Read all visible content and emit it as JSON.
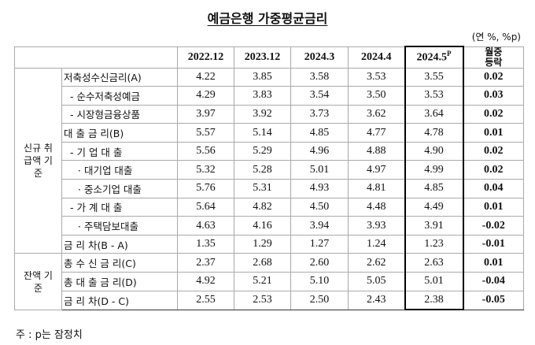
{
  "title": "예금은행 가중평균금리",
  "unit": "(연 %, %p)",
  "table": {
    "columns": [
      {
        "text": "2022.12"
      },
      {
        "text": "2023.12"
      },
      {
        "text": "2024.3"
      },
      {
        "text": "2024.4"
      },
      {
        "text": "2024.5",
        "sup": "P"
      },
      {
        "text": "월중 등락"
      }
    ],
    "groups": [
      {
        "label": "신규 취급액 기준",
        "rows": [
          {
            "label": "저축성수신금리(A)",
            "values": [
              "4.22",
              "3.85",
              "3.58",
              "3.53",
              "3.55",
              "0.02"
            ]
          },
          {
            "label": "- 순수저축성예금",
            "values": [
              "4.29",
              "3.83",
              "3.54",
              "3.50",
              "3.53",
              "0.03"
            ]
          },
          {
            "label": "- 시장형금융상품",
            "values": [
              "3.97",
              "3.92",
              "3.73",
              "3.62",
              "3.64",
              "0.02"
            ]
          },
          {
            "label": "대 출 금 리(B)",
            "values": [
              "5.57",
              "5.14",
              "4.85",
              "4.77",
              "4.78",
              "0.01"
            ]
          },
          {
            "label": "- 기 업 대 출",
            "values": [
              "5.56",
              "5.29",
              "4.96",
              "4.88",
              "4.90",
              "0.02"
            ]
          },
          {
            "label": "· 대기업 대출",
            "values": [
              "5.32",
              "5.28",
              "5.01",
              "4.97",
              "4.99",
              "0.02"
            ]
          },
          {
            "label": "· 중소기업 대출",
            "values": [
              "5.76",
              "5.31",
              "4.93",
              "4.81",
              "4.85",
              "0.04"
            ]
          },
          {
            "label": "- 가 계 대 출",
            "values": [
              "5.64",
              "4.82",
              "4.50",
              "4.48",
              "4.49",
              "0.01"
            ]
          },
          {
            "label": "· 주택담보대출",
            "values": [
              "4.63",
              "4.16",
              "3.94",
              "3.93",
              "3.91",
              "-0.02"
            ]
          },
          {
            "label": "금 리 차(B - A)",
            "values": [
              "1.35",
              "1.29",
              "1.27",
              "1.24",
              "1.23",
              "-0.01"
            ]
          }
        ]
      },
      {
        "label": "잔액 기준",
        "rows": [
          {
            "label": "총 수 신 금 리(C)",
            "values": [
              "2.37",
              "2.68",
              "2.60",
              "2.62",
              "2.63",
              "0.01"
            ]
          },
          {
            "label": "총 대 출 금 리(D)",
            "values": [
              "4.92",
              "5.21",
              "5.10",
              "5.05",
              "5.01",
              "-0.04"
            ]
          },
          {
            "label": "금 리 차(D - C)",
            "values": [
              "2.55",
              "2.53",
              "2.50",
              "2.43",
              "2.38",
              "-0.05"
            ]
          }
        ]
      }
    ]
  },
  "note": "주 : p는 잠정치"
}
